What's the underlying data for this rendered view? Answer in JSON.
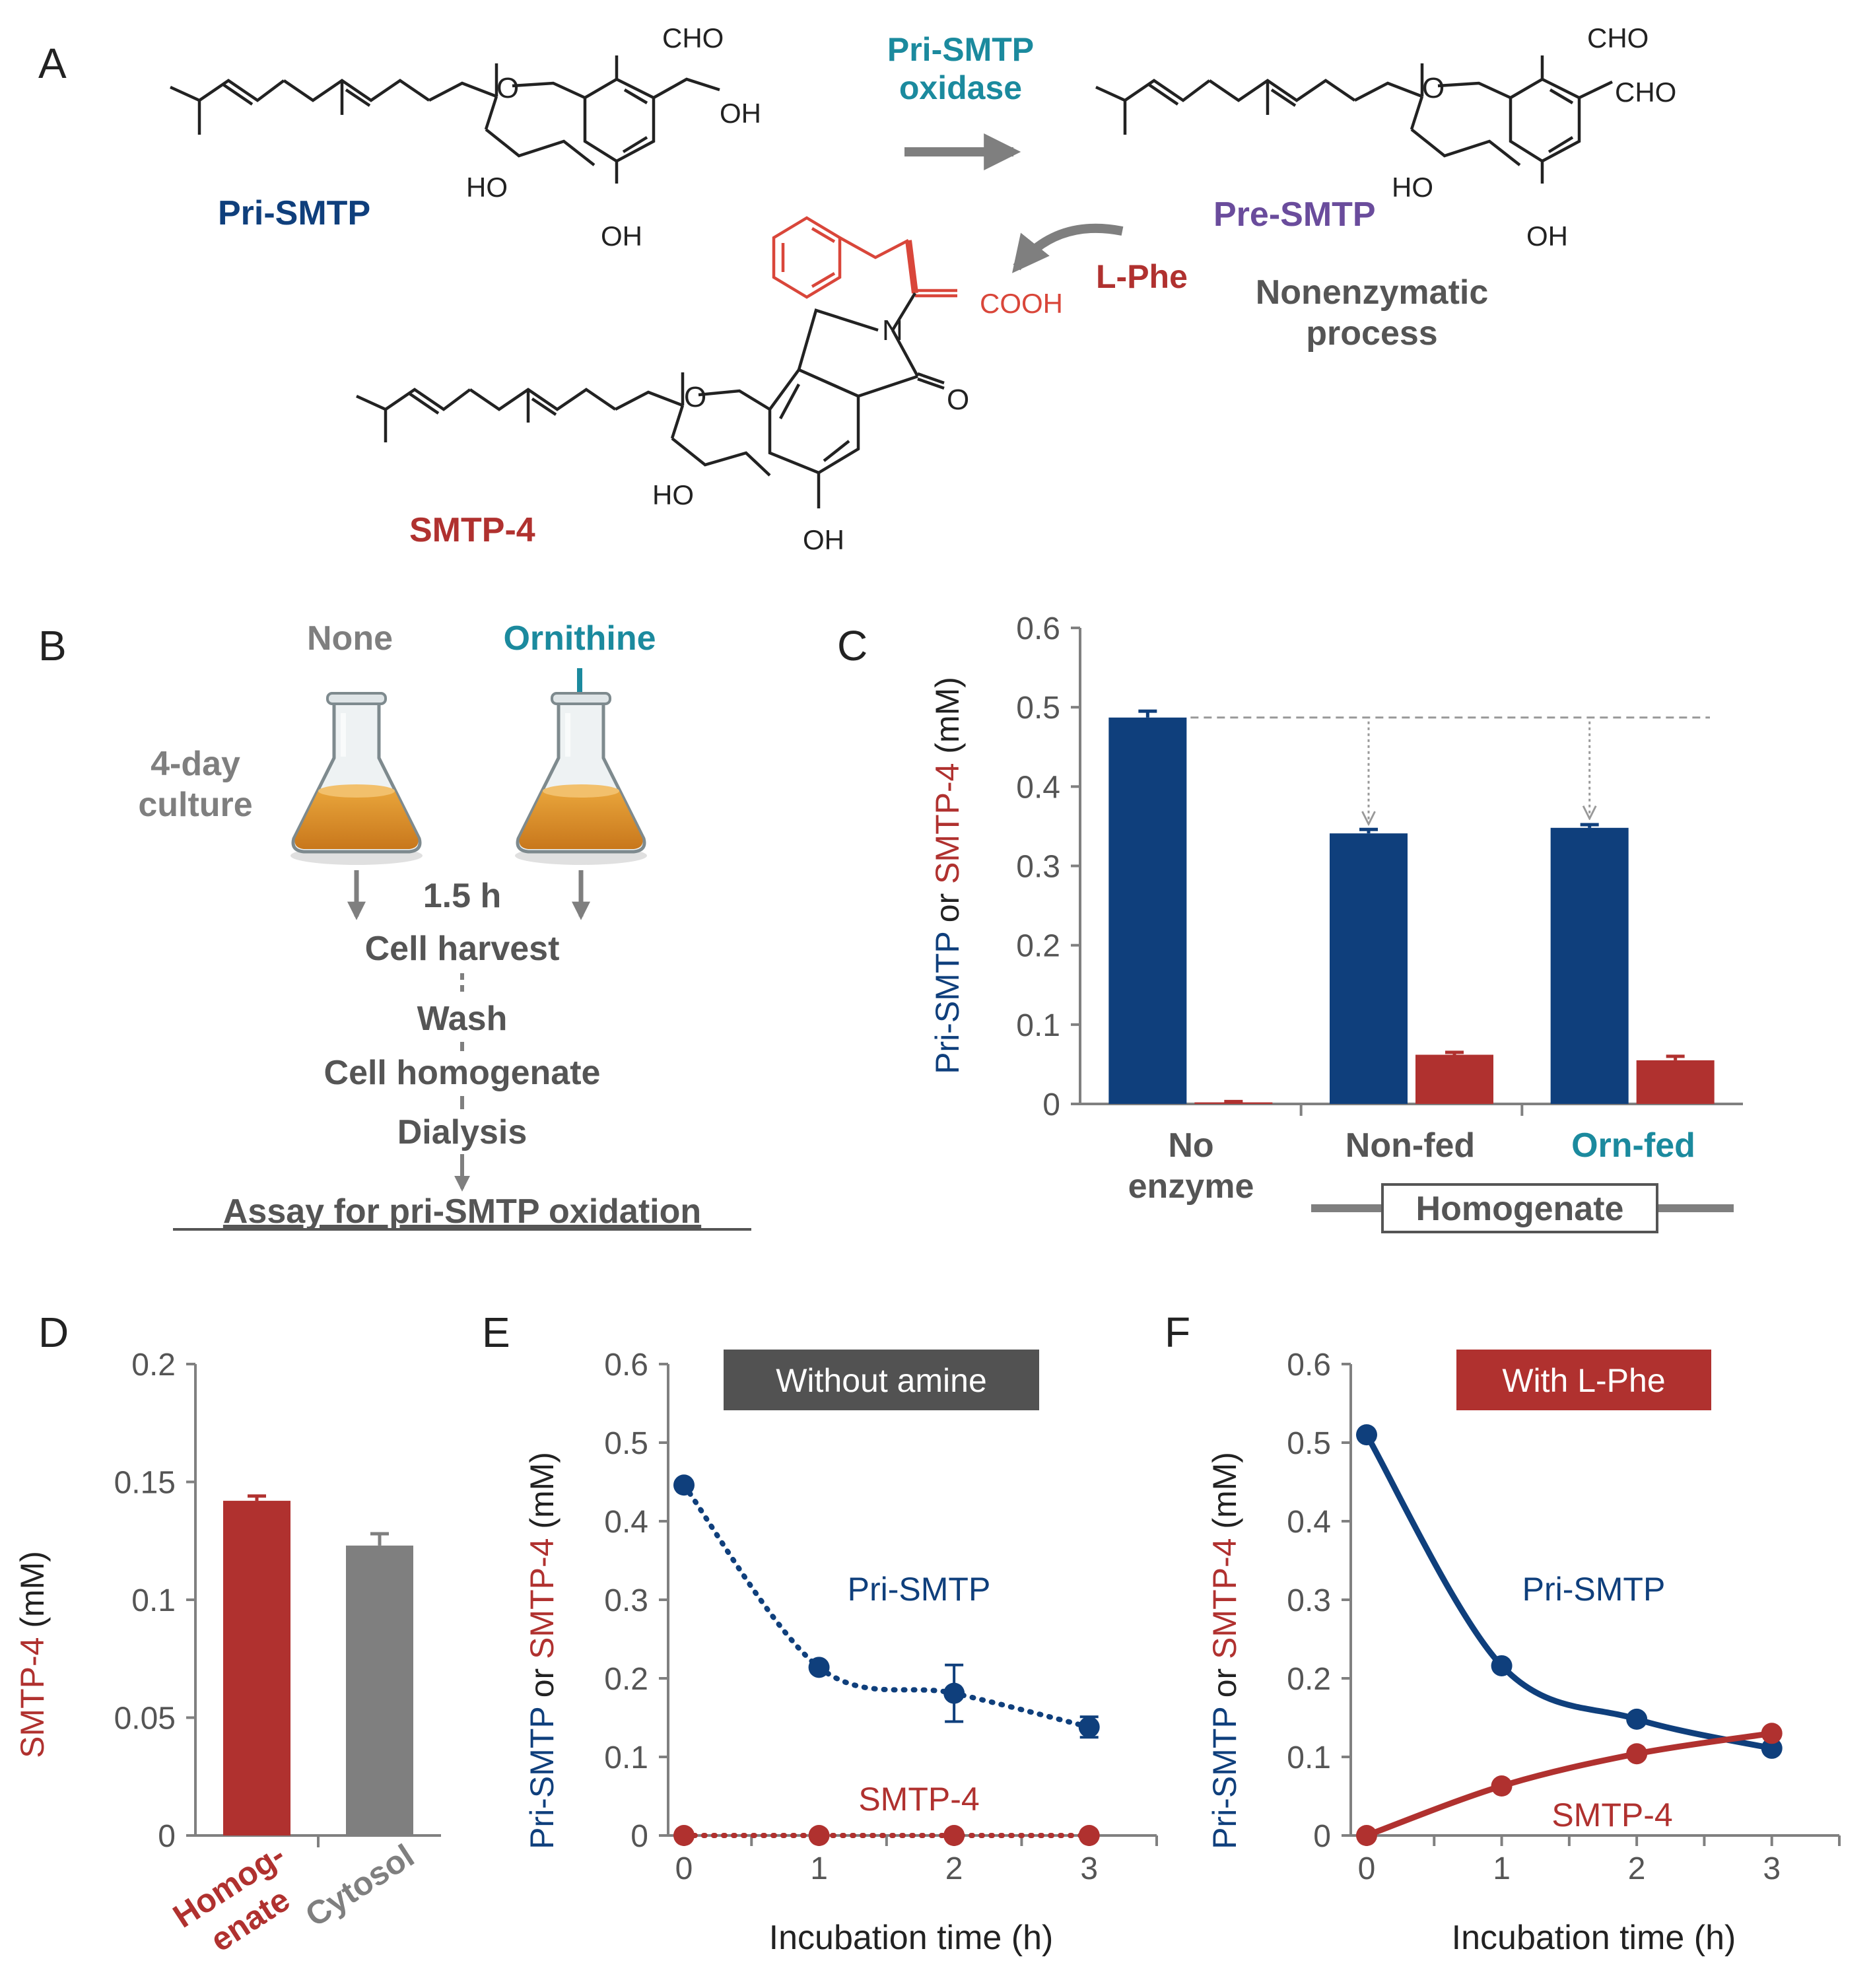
{
  "colors": {
    "blue": "#0f3f7c",
    "red": "#b0312f",
    "gray": "#7f7f7f",
    "teal": "#1b8a9e",
    "purple": "#6a4c9c",
    "black": "#222222",
    "dark_label": "#555555",
    "dark_badge": "#525252"
  },
  "panelA": {
    "letter": "A",
    "pri_smtp": "Pri-SMTP",
    "enzyme": [
      "Pri-SMTP",
      "oxidase"
    ],
    "pre_smtp": "Pre-SMTP",
    "lphe": "L-Phe",
    "nonenzymatic": [
      "Nonenzymatic",
      "process"
    ],
    "smtp4": "SMTP-4",
    "atoms": {
      "cho": "CHO",
      "oh": "OH",
      "ho": "HO",
      "o": "O",
      "n": "N",
      "cooh": "COOH"
    }
  },
  "panelB": {
    "letter": "B",
    "none_label": "None",
    "ornithine_label": "Ornithine",
    "culture": [
      "4-day",
      "culture"
    ],
    "time": "1.5 h",
    "steps": [
      "Cell harvest",
      "Wash",
      "Cell homogenate",
      "Dialysis"
    ],
    "assay": "Assay for pri-SMTP oxidation",
    "flask_icon": "erlenmeyer-flask-icon"
  },
  "panelC": {
    "letter": "C",
    "ylabel_parts": [
      "Pri-SMTP",
      " or ",
      "SMTP-4",
      " (mM)"
    ],
    "groups": [
      [
        "No",
        "enzyme"
      ],
      [
        "Non-fed"
      ],
      [
        "Orn-fed"
      ]
    ],
    "bracket_label": "Homogenate"
  },
  "panelD": {
    "letter": "D",
    "ylabel_parts": [
      "SMTP-4",
      "  (mM)"
    ],
    "categories": [
      "Homog-",
      "enate",
      "Cytosol"
    ]
  },
  "panelE": {
    "letter": "E",
    "badge": "Without amine",
    "ylabel_parts": [
      "Pri-SMTP",
      " or ",
      "SMTP-4",
      " (mM)"
    ],
    "xlabel": "Incubation time (h)",
    "label_pri": "Pri-SMTP",
    "label_smtp4": "SMTP-4"
  },
  "panelF": {
    "letter": "F",
    "badge": "With L-Phe",
    "ylabel_parts": [
      "Pri-SMTP",
      " or ",
      "SMTP-4",
      " (mM)"
    ],
    "xlabel": "Incubation time (h)",
    "label_pri": "Pri-SMTP",
    "label_smtp4": "SMTP-4"
  },
  "chart_data": [
    {
      "panel": "C",
      "type": "bar",
      "categories": [
        "No enzyme",
        "Non-fed",
        "Orn-fed"
      ],
      "series": [
        {
          "name": "Pri-SMTP",
          "values": [
            0.487,
            0.341,
            0.348
          ],
          "errors": [
            0.008,
            0.005,
            0.004
          ]
        },
        {
          "name": "SMTP-4",
          "values": [
            0.002,
            0.062,
            0.055
          ],
          "errors": [
            0.001,
            0.003,
            0.005
          ]
        }
      ],
      "ylim": [
        0,
        0.6
      ],
      "yticks": [
        "0",
        "0.1",
        "0.2",
        "0.3",
        "0.4",
        "0.5",
        "0.6"
      ],
      "reference_line": 0.487
    },
    {
      "panel": "D",
      "type": "bar",
      "categories": [
        "Homogenate",
        "Cytosol"
      ],
      "values": [
        0.142,
        0.123
      ],
      "errors": [
        0.002,
        0.005
      ],
      "ylim": [
        0,
        0.2
      ],
      "yticks": [
        "0",
        "0.05",
        "0.1",
        "0.15",
        "0.2"
      ]
    },
    {
      "panel": "E",
      "type": "line",
      "x": [
        0,
        1,
        2,
        3
      ],
      "series": [
        {
          "name": "Pri-SMTP",
          "values": [
            0.446,
            0.214,
            0.181,
            0.138
          ],
          "errors": [
            0,
            0.004,
            0.036,
            0.013
          ]
        },
        {
          "name": "SMTP-4",
          "values": [
            0,
            0,
            0,
            0
          ],
          "errors": [
            0,
            0,
            0,
            0
          ]
        }
      ],
      "line_style": "dotted",
      "ylim": [
        0,
        0.6
      ],
      "yticks": [
        "0",
        "0.1",
        "0.2",
        "0.3",
        "0.4",
        "0.5",
        "0.6"
      ],
      "xticks": [
        "0",
        "1",
        "2",
        "3"
      ],
      "xlim": [
        0,
        3.5
      ]
    },
    {
      "panel": "F",
      "type": "line",
      "x": [
        0,
        1,
        2,
        3
      ],
      "series": [
        {
          "name": "Pri-SMTP",
          "values": [
            0.51,
            0.216,
            0.148,
            0.111
          ]
        },
        {
          "name": "SMTP-4",
          "values": [
            0,
            0.063,
            0.104,
            0.13
          ]
        }
      ],
      "line_style": "solid",
      "ylim": [
        0,
        0.6
      ],
      "yticks": [
        "0",
        "0.1",
        "0.2",
        "0.3",
        "0.4",
        "0.5",
        "0.6"
      ],
      "xticks": [
        "0",
        "1",
        "2",
        "3"
      ],
      "xlim": [
        0,
        3.5
      ]
    }
  ]
}
